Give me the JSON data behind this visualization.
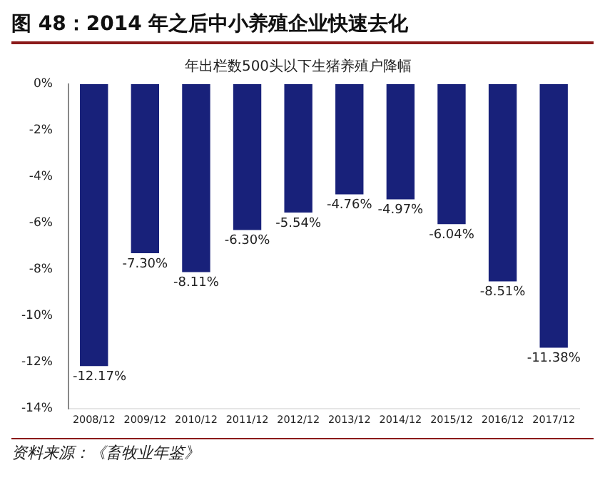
{
  "chart_data": {
    "type": "bar",
    "title": "图 48：2014 年之后中小养殖企业快速去化",
    "subtitle": "年出栏数500头以下生猪养殖户降幅",
    "categories": [
      "2008/12",
      "2009/12",
      "2010/12",
      "2011/12",
      "2012/12",
      "2013/12",
      "2014/12",
      "2015/12",
      "2016/12",
      "2017/12"
    ],
    "values": [
      -12.17,
      -7.3,
      -8.11,
      -6.3,
      -5.54,
      -4.76,
      -4.97,
      -6.04,
      -8.51,
      -11.38
    ],
    "value_labels": [
      "-12.17%",
      "-7.30%",
      "-8.11%",
      "-6.30%",
      "-5.54%",
      "-4.76%",
      "-4.97%",
      "-6.04%",
      "-8.51%",
      "-11.38%"
    ],
    "color": "#18217a",
    "ylim": [
      -14,
      0
    ],
    "yticks": [
      {
        "value": 0,
        "label": "0%"
      },
      {
        "value": -2,
        "label": "-2%"
      },
      {
        "value": -4,
        "label": "-4%"
      },
      {
        "value": -6,
        "label": "-6%"
      },
      {
        "value": -8,
        "label": "-8%"
      },
      {
        "value": -10,
        "label": "-10%"
      },
      {
        "value": -12,
        "label": "-12%"
      },
      {
        "value": -14,
        "label": "-14%"
      }
    ],
    "grid": false,
    "legend": false,
    "annotations": [
      "资料来源：《畜牧业年鉴》"
    ]
  }
}
